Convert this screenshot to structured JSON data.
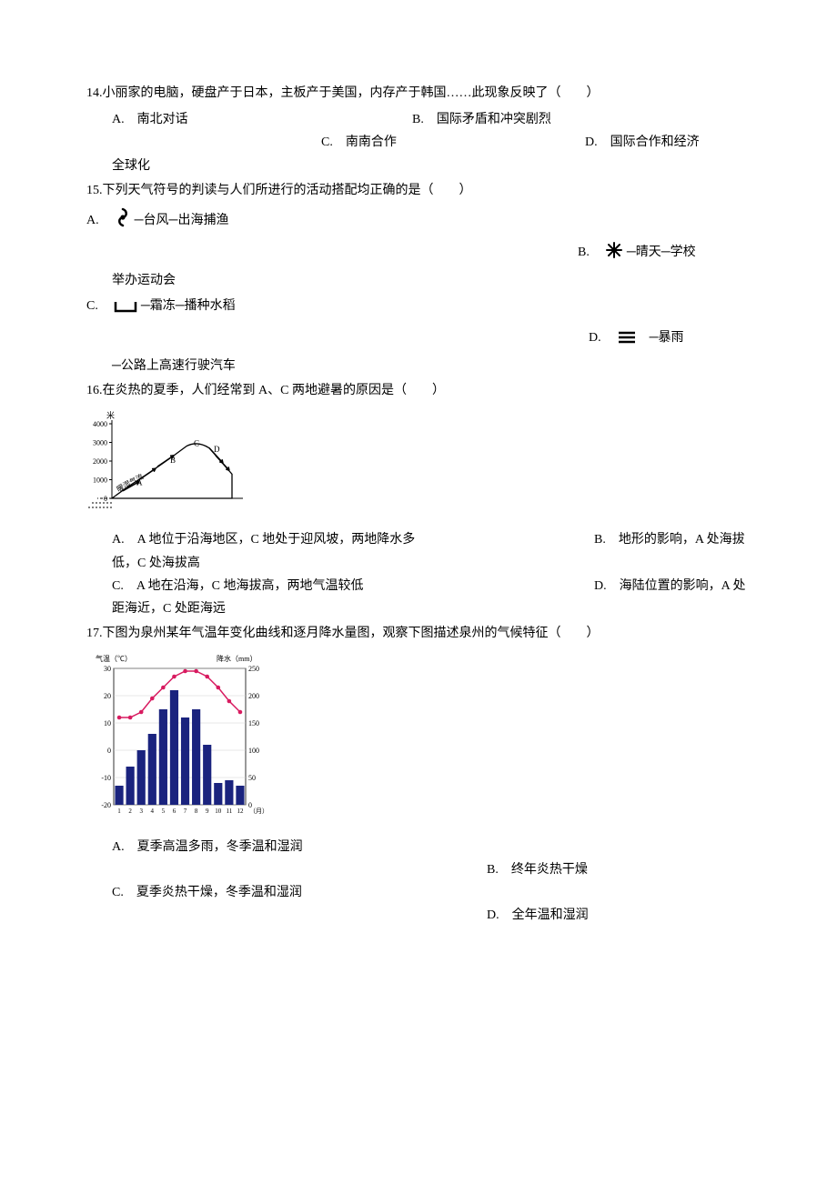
{
  "q14": {
    "stem": "14.小丽家的电脑，硬盘产于日本，主板产于美国，内存产于韩国……此现象反映了（　　）",
    "A": "A.　南北对话",
    "B": "B.　国际矛盾和冲突剧烈",
    "C": "C.　南南合作",
    "D": "D.　国际合作和经济",
    "cont": "全球化"
  },
  "q15": {
    "stem": "15.下列天气符号的判读与人们所进行的活动搭配均正确的是（　　）",
    "A_pre": "A.",
    "A_post": "─台风─出海捕渔",
    "B_pre": "B.",
    "B_post": "─晴天─学校",
    "cont1": "举办运动会",
    "C_pre": "C.",
    "C_post": "─霜冻─播种水稻",
    "D_pre": "D.",
    "D_post": "─暴雨",
    "cont2": "─公路上高速行驶汽车"
  },
  "q16": {
    "stem": "16.在炎热的夏季，人们经常到 A、C 两地避暑的原因是（　　）",
    "chart": {
      "y_label": "米",
      "y_ticks": [
        0,
        1000,
        2000,
        3000,
        4000
      ],
      "curve_color": "#000000",
      "arrows_color": "#000000",
      "label_text": "暖湿气流",
      "points": [
        "A",
        "B",
        "C",
        "D"
      ]
    },
    "A": "A.　A 地位于沿海地区，C 地处于迎风坡，两地降水多",
    "B": "B.　地形的影响，A 处海拔",
    "cont1": "低，C 处海拔高",
    "C": "C.　A 地在沿海，C 地海拔高，两地气温较低",
    "D": "D.　海陆位置的影响，A 处",
    "cont2": "距海近，C 处距海远"
  },
  "q17": {
    "stem": "17.下图为泉州某年气温年变化曲线和逐月降水量图，观察下图描述泉州的气候特征（　　）",
    "chart": {
      "temp_label": "气温（℃）",
      "precip_label": "降水（mm）",
      "x_month_label": "（月）",
      "bar_color": "#1a237e",
      "line_color": "#d81b60",
      "grid_color": "#d0d0d0",
      "background_color": "#ffffff",
      "temp_ticks": [
        -20,
        -10,
        0,
        10,
        20,
        30
      ],
      "precip_ticks": [
        0,
        50,
        100,
        150,
        200,
        250
      ],
      "months": [
        1,
        2,
        3,
        4,
        5,
        6,
        7,
        8,
        9,
        10,
        11,
        12
      ],
      "temp_values": [
        12,
        12,
        14,
        19,
        23,
        27,
        29,
        29,
        27,
        23,
        18,
        14
      ],
      "precip_values": [
        35,
        70,
        100,
        130,
        175,
        210,
        160,
        175,
        110,
        40,
        45,
        35
      ]
    },
    "A": "A.　夏季高温多雨，冬季温和湿润",
    "B": "B.　终年炎热干燥",
    "C": "C.　夏季炎热干燥，冬季温和湿润",
    "D": "D.　全年温和湿润"
  }
}
